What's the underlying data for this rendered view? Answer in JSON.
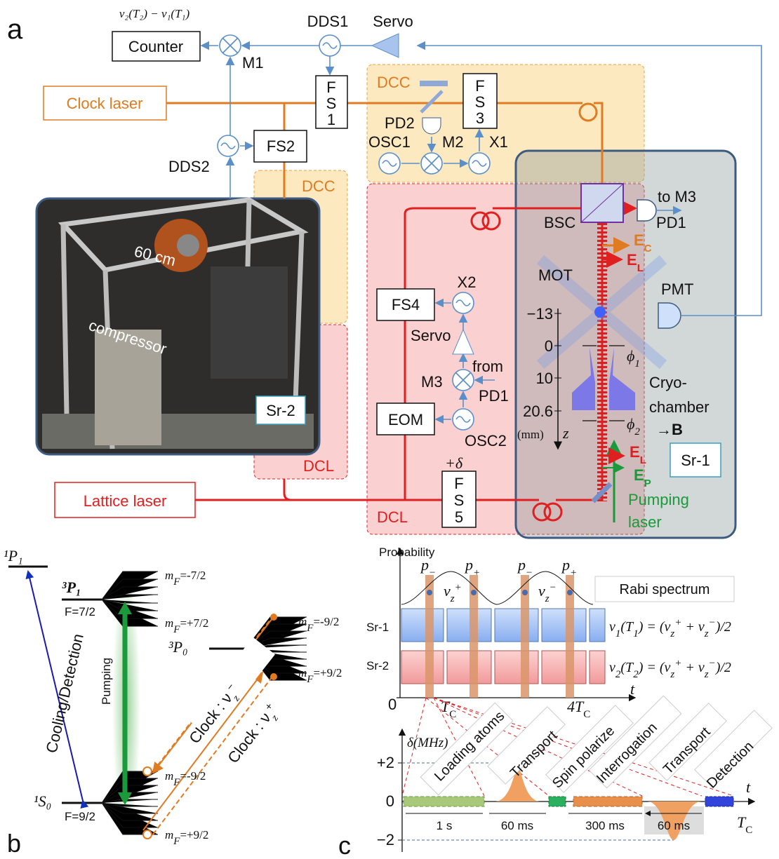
{
  "panel_a": {
    "label": "a",
    "counter_formula": "ν₂(T₂) − ν₁(T₁)",
    "counter": "Counter",
    "m1": "M1",
    "dds1": "DDS1",
    "servo_top": "Servo",
    "clock_laser": "Clock laser",
    "fs1": [
      "F",
      "S",
      "1"
    ],
    "fs2": "FS2",
    "dds2": "DDS2",
    "dcc_top": "DCC",
    "pd2": "PD2",
    "fs3": [
      "F",
      "S",
      "3"
    ],
    "osc1": "OSC1",
    "m2": "M2",
    "x1": "X1",
    "dcc_side": "DCC",
    "photo_scale": "60 cm",
    "photo_compressor": "compressor",
    "sr2": "Sr-2",
    "dcl_side": "DCL",
    "lattice_laser": "Lattice laser",
    "to_m3": "to M3",
    "pd1": "PD1",
    "bsc": "BSC",
    "e_c": [
      "E",
      "C"
    ],
    "e_l_top": [
      "E",
      "L"
    ],
    "mot": "MOT",
    "pmt": "PMT",
    "z_ticks": [
      "−13",
      "0",
      "10",
      "20.6"
    ],
    "z_unit": "(mm)",
    "z_label": "z",
    "phi1": [
      "ϕ",
      "1"
    ],
    "phi2": [
      "ϕ",
      "2"
    ],
    "cryo": [
      "Cryo-",
      "chamber"
    ],
    "b_field": "→B",
    "sr1": "Sr-1",
    "e_l_bottom": [
      "E",
      "L"
    ],
    "e_p": [
      "E",
      "P"
    ],
    "pumping_laser": [
      "Pumping",
      "laser"
    ],
    "fs4": "FS4",
    "x2": "X2",
    "servo_mid": "Servo",
    "from_pd1": [
      "from",
      "PD1"
    ],
    "m3": "M3",
    "eom": "EOM",
    "osc2": "OSC2",
    "delta": "+δ",
    "fs5": [
      "F",
      "S",
      "5"
    ],
    "dcl_bottom": "DCL"
  },
  "panel_b": {
    "label": "b",
    "p1_1": "¹P₁",
    "p3_1": "³P₁",
    "f72": "F=7/2",
    "mf_m72": [
      "m",
      "F",
      "=-7/2"
    ],
    "mf_p72": [
      "m",
      "F",
      "=+7/2"
    ],
    "p3_0": "³P₀",
    "mf_m92_top": [
      "m",
      "F",
      "=-9/2"
    ],
    "mf_p92_top": [
      "m",
      "F",
      "=+9/2"
    ],
    "cooling": "Cooling/Detection",
    "pumping": "Pumping",
    "clock_minus": [
      "Clock : ν",
      "z",
      "−"
    ],
    "clock_plus": [
      "Clock : ν",
      "z",
      "+"
    ],
    "s1_0": "¹S₀",
    "f92": "F=9/2",
    "mf_m92_bottom": [
      "m",
      "F",
      "=-9/2"
    ],
    "mf_p92_bottom": [
      "m",
      "F",
      "=+9/2"
    ]
  },
  "panel_c": {
    "label": "c",
    "probability": "Probability",
    "p_labels": [
      [
        "p",
        "−"
      ],
      [
        "p",
        "+"
      ],
      [
        "p",
        "−"
      ],
      [
        "p",
        "+"
      ]
    ],
    "nu_plus": [
      "ν",
      "z",
      "+"
    ],
    "nu_minus": [
      "ν",
      "z",
      "−"
    ],
    "rabi": "Rabi spectrum",
    "sr1": "Sr-1",
    "sr2": "Sr-2",
    "formula1": [
      "ν",
      "1",
      "(T",
      "1",
      ") = (ν",
      "z",
      "+",
      " + ν",
      "z",
      "−",
      ")/2"
    ],
    "formula2": [
      "ν",
      "2",
      "(T",
      "2",
      ") = (ν",
      "z",
      "+",
      " + ν",
      "z",
      "−",
      ")/2"
    ],
    "t_zero": "0",
    "t_tc": [
      "T",
      "C"
    ],
    "t_4tc": [
      "4T",
      "C"
    ],
    "t_axis": "t",
    "delta_axis": "δ(MHz)",
    "d_plus2": "+2",
    "d_zero": "0",
    "d_minus2": "−2",
    "steps": [
      "Loading atoms",
      "Transport",
      "Spin polarize",
      "Interrogation",
      "Transport",
      "Detection"
    ],
    "durations": [
      "1 s",
      "60 ms",
      "300 ms",
      "60 ms"
    ],
    "t_axis_bottom": "t",
    "tc_bottom": [
      "T",
      "C"
    ]
  }
}
